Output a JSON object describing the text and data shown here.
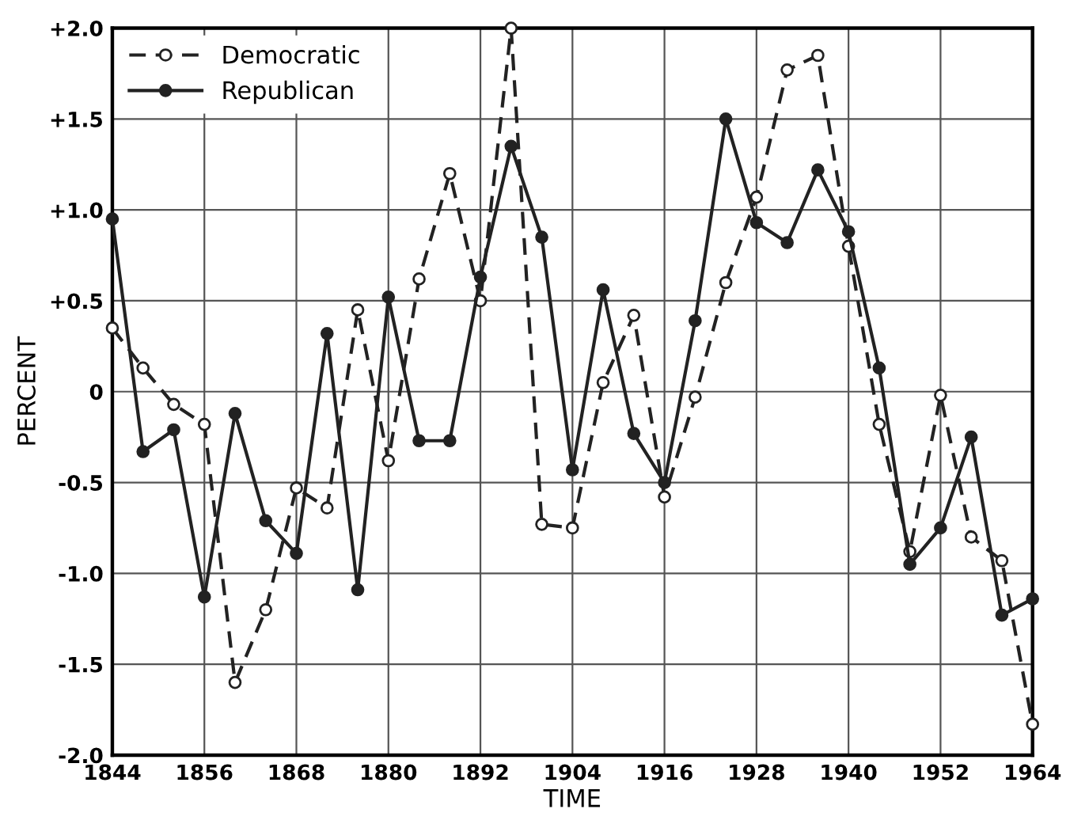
{
  "chart_data": {
    "type": "line",
    "xlabel": "TIME",
    "ylabel": "PERCENT",
    "x": [
      1844,
      1848,
      1852,
      1856,
      1860,
      1864,
      1868,
      1872,
      1876,
      1880,
      1884,
      1888,
      1892,
      1896,
      1900,
      1904,
      1908,
      1912,
      1916,
      1920,
      1924,
      1928,
      1932,
      1936,
      1940,
      1944,
      1948,
      1952,
      1956,
      1960,
      1964
    ],
    "series": [
      {
        "name": "Democratic",
        "color": "#222222",
        "line_style": "dashed",
        "values": [
          0.35,
          0.13,
          -0.07,
          -0.18,
          -1.6,
          -1.2,
          -0.53,
          -0.64,
          0.45,
          -0.38,
          0.62,
          1.2,
          0.5,
          2.0,
          -0.73,
          -0.75,
          0.05,
          0.42,
          -0.58,
          -0.03,
          0.6,
          1.07,
          1.77,
          1.85,
          0.8,
          -0.18,
          -0.88,
          -0.02,
          -0.8,
          -0.93,
          -1.83
        ]
      },
      {
        "name": "Republican",
        "color": "#222222",
        "line_style": "solid",
        "values": [
          0.95,
          -0.33,
          -0.21,
          -1.13,
          -0.12,
          -0.71,
          -0.89,
          0.32,
          -1.09,
          0.52,
          -0.27,
          -0.27,
          0.63,
          1.35,
          0.85,
          -0.43,
          0.56,
          -0.23,
          -0.5,
          0.39,
          1.5,
          0.93,
          0.82,
          1.22,
          0.88,
          0.13,
          -0.95,
          -0.75,
          -0.25,
          -1.23,
          -1.14
        ]
      }
    ],
    "xlim": [
      1844,
      1964
    ],
    "xticks": [
      1844,
      1856,
      1868,
      1880,
      1892,
      1904,
      1916,
      1928,
      1940,
      1952,
      1964
    ],
    "ylim": [
      -2.0,
      2.0
    ],
    "yticks": [
      {
        "value": 2.0,
        "label": "+2.0"
      },
      {
        "value": 1.5,
        "label": "+1.5"
      },
      {
        "value": 1.0,
        "label": "+1.0"
      },
      {
        "value": 0.5,
        "label": "+0.5"
      },
      {
        "value": 0,
        "label": "0"
      },
      {
        "value": -0.5,
        "label": "-0.5"
      },
      {
        "value": -1.0,
        "label": "-1.0"
      },
      {
        "value": -1.5,
        "label": "-1.5"
      },
      {
        "value": -2.0,
        "label": "-2.0"
      }
    ],
    "grid": true,
    "legend": "top left",
    "marker": "circle"
  }
}
